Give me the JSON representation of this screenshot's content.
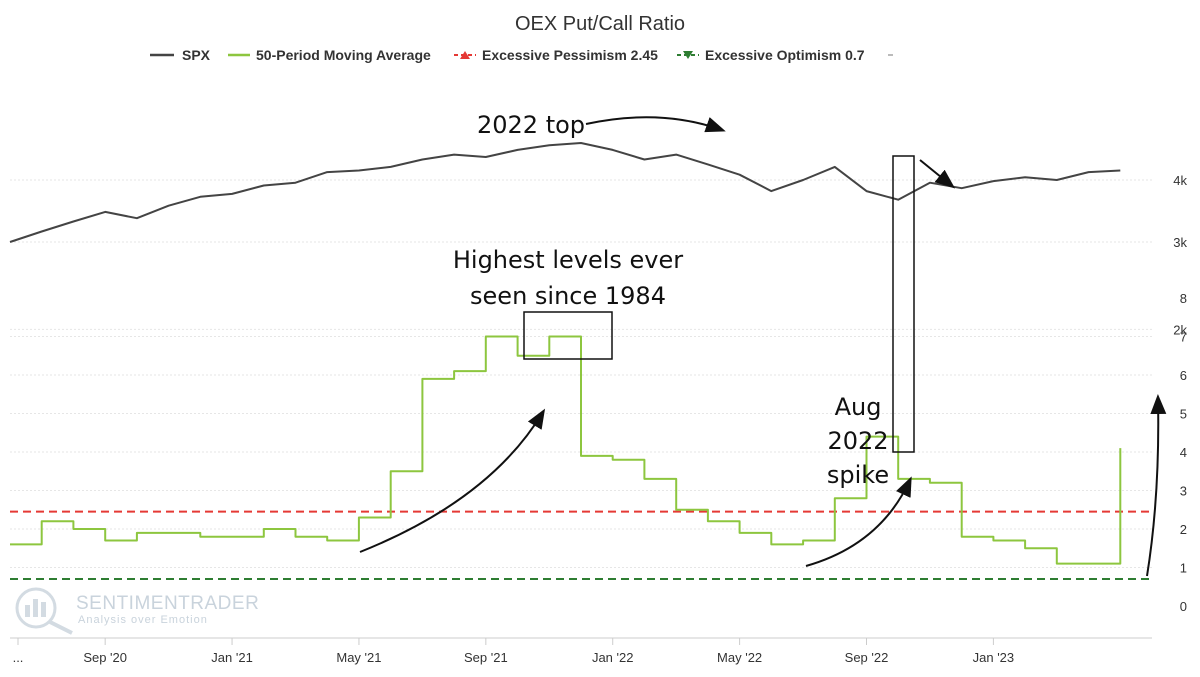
{
  "chart_data": {
    "type": "line",
    "title": "OEX Put/Call Ratio",
    "legend": [
      {
        "name": "SPX",
        "color": "#444444",
        "marker": "line"
      },
      {
        "name": "50-Period Moving Average",
        "color": "#8dc63f",
        "marker": "line"
      },
      {
        "name": "Excessive Pessimism 2.45",
        "color": "#e53935",
        "marker": "triangle-up"
      },
      {
        "name": "Excessive Optimism 0.7",
        "color": "#2e7d32",
        "marker": "triangle-down"
      }
    ],
    "legend_placement": "top",
    "x_ticks": [
      "...",
      "Sep '20",
      "Jan '21",
      "May '21",
      "Sep '21",
      "Jan '22",
      "May '22",
      "Sep '22",
      "Jan '23"
    ],
    "x_range": [
      "2020-06",
      "2023-06"
    ],
    "spx_axis": {
      "ticks": [
        "2k",
        "3k",
        "4k"
      ],
      "scale": "log"
    },
    "ratio_axis": {
      "ticks": [
        "0",
        "1",
        "2",
        "3",
        "4",
        "5",
        "6",
        "7",
        "8"
      ],
      "ylim": [
        0,
        8
      ]
    },
    "grid": true,
    "series": [
      {
        "name": "SPX",
        "axis": "spx",
        "x": [
          "2020-06-01",
          "2020-07-01",
          "2020-08-01",
          "2020-09-01",
          "2020-10-01",
          "2020-11-01",
          "2020-12-01",
          "2021-01-01",
          "2021-02-01",
          "2021-03-01",
          "2021-04-01",
          "2021-05-01",
          "2021-06-01",
          "2021-07-01",
          "2021-08-01",
          "2021-09-01",
          "2021-10-01",
          "2021-11-01",
          "2021-12-01",
          "2022-01-01",
          "2022-02-01",
          "2022-03-01",
          "2022-04-01",
          "2022-05-01",
          "2022-06-01",
          "2022-07-01",
          "2022-08-01",
          "2022-09-01",
          "2022-10-01",
          "2022-11-01",
          "2022-12-01",
          "2023-01-01",
          "2023-02-01",
          "2023-03-01",
          "2023-04-01",
          "2023-05-01"
        ],
        "values": [
          3000,
          3150,
          3300,
          3450,
          3350,
          3550,
          3700,
          3750,
          3900,
          3950,
          4150,
          4180,
          4250,
          4400,
          4500,
          4450,
          4600,
          4700,
          4750,
          4600,
          4400,
          4500,
          4300,
          4100,
          3800,
          4000,
          4250,
          3800,
          3650,
          3950,
          3850,
          3980,
          4050,
          4000,
          4150,
          4180
        ]
      },
      {
        "name": "50-Period Moving Average",
        "axis": "ratio",
        "x": [
          "2020-06-01",
          "2020-07-01",
          "2020-08-01",
          "2020-09-01",
          "2020-10-01",
          "2020-11-01",
          "2020-12-01",
          "2021-01-01",
          "2021-02-01",
          "2021-03-01",
          "2021-04-01",
          "2021-05-01",
          "2021-06-01",
          "2021-07-01",
          "2021-08-01",
          "2021-09-01",
          "2021-10-01",
          "2021-11-01",
          "2021-12-01",
          "2022-01-01",
          "2022-02-01",
          "2022-03-01",
          "2022-04-01",
          "2022-05-01",
          "2022-06-01",
          "2022-07-01",
          "2022-08-01",
          "2022-09-01",
          "2022-10-01",
          "2022-11-01",
          "2022-12-01",
          "2023-01-01",
          "2023-02-01",
          "2023-03-01",
          "2023-04-01",
          "2023-05-01"
        ],
        "values": [
          1.6,
          2.2,
          2.0,
          1.7,
          1.9,
          1.9,
          1.8,
          1.8,
          2.0,
          1.8,
          1.7,
          2.3,
          3.5,
          5.9,
          6.1,
          7.0,
          6.5,
          7.0,
          3.9,
          3.8,
          3.3,
          2.5,
          2.2,
          1.9,
          1.6,
          1.7,
          2.8,
          4.4,
          3.3,
          3.2,
          1.8,
          1.7,
          1.5,
          1.1,
          1.1,
          4.1
        ]
      }
    ],
    "reference_lines": [
      {
        "name": "Excessive Pessimism 2.45",
        "value": 2.45,
        "color": "#e53935",
        "axis": "ratio"
      },
      {
        "name": "Excessive Optimism 0.7",
        "value": 0.7,
        "color": "#2e7d32",
        "axis": "ratio"
      }
    ],
    "annotations": {
      "top": "2022 top",
      "highest_line1": "Highest levels ever",
      "highest_line2": "seen since 1984",
      "aug_line1": "Aug",
      "aug_line2": "2022",
      "aug_line3": "spike"
    }
  },
  "watermark": {
    "brand": "SENTIMENTRADER",
    "tagline": "Analysis over Emotion"
  }
}
